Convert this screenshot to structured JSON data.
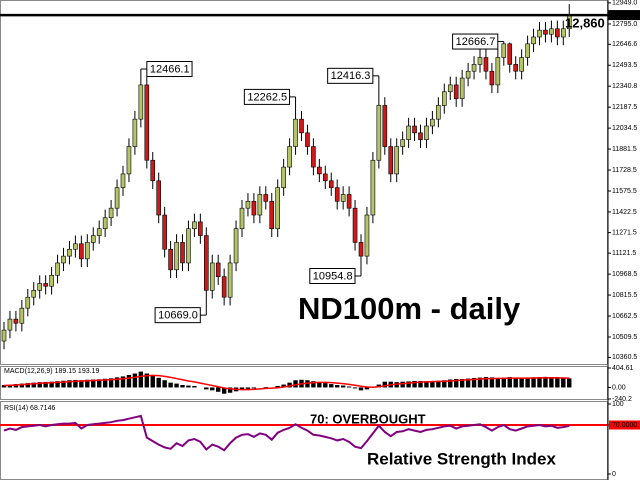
{
  "chart_data": [
    {
      "type": "candlestick",
      "title": "ND100m - daily",
      "open": [
        10480,
        10560,
        10640,
        10610,
        10720,
        10800,
        10850,
        10900,
        10880,
        10960,
        11050,
        11100,
        11150,
        11190,
        11080,
        11200,
        11250,
        11300,
        11380,
        11450,
        11600,
        11700,
        11900,
        12100,
        12350,
        11800,
        11650,
        11400,
        11150,
        11000,
        11200,
        11050,
        11300,
        11350,
        11250,
        10850,
        11050,
        10950,
        10800,
        11050,
        11300,
        11450,
        11500,
        11400,
        11550,
        11500,
        11300,
        11600,
        11750,
        11900,
        12100,
        12000,
        11900,
        11750,
        11700,
        11650,
        11600,
        11500,
        11550,
        11450,
        11200,
        11100,
        11400,
        11800,
        12200,
        11900,
        11700,
        11900,
        11950,
        12050,
        12000,
        11950,
        12050,
        12100,
        12200,
        12300,
        12350,
        12250,
        12400,
        12450,
        12500,
        12550,
        12450,
        12350,
        12550,
        12650,
        12500,
        12450,
        12550,
        12650,
        12700,
        12750,
        12720,
        12760,
        12700,
        12760
      ],
      "high": [
        10620,
        10700,
        10700,
        10780,
        10860,
        10910,
        10960,
        10960,
        11020,
        11110,
        11160,
        11210,
        11250,
        11250,
        11260,
        11310,
        11360,
        11440,
        11510,
        11660,
        11760,
        11960,
        12160,
        12466.1,
        12410,
        11860,
        11710,
        11460,
        11210,
        11260,
        11260,
        11360,
        11410,
        11410,
        11310,
        11110,
        11110,
        11010,
        11110,
        11360,
        11510,
        11560,
        11560,
        11610,
        11610,
        11560,
        11660,
        11810,
        11960,
        12262.5,
        12160,
        12060,
        11960,
        11810,
        11760,
        11710,
        11660,
        11610,
        11610,
        11510,
        11260,
        11460,
        11860,
        12416.3,
        12260,
        11960,
        11960,
        12010,
        12110,
        12110,
        12060,
        12110,
        12160,
        12260,
        12360,
        12410,
        12410,
        12460,
        12510,
        12560,
        12610,
        12610,
        12510,
        12610,
        12666.7,
        12660,
        12560,
        12610,
        12710,
        12760,
        12810,
        12810,
        12820,
        12820,
        12820,
        12940
      ],
      "low": [
        10420,
        10500,
        10550,
        10550,
        10660,
        10740,
        10790,
        10820,
        10820,
        10900,
        10990,
        11040,
        11090,
        11020,
        11020,
        11140,
        11190,
        11240,
        11320,
        11390,
        11540,
        11640,
        11840,
        12040,
        11740,
        11590,
        11340,
        11090,
        10940,
        10940,
        10990,
        10990,
        11240,
        11190,
        10669,
        10790,
        10890,
        10740,
        10740,
        10990,
        11240,
        11390,
        11340,
        11340,
        11440,
        11240,
        11240,
        11540,
        11690,
        11840,
        11940,
        11840,
        11690,
        11640,
        11590,
        11540,
        11440,
        11440,
        11390,
        11140,
        10954.8,
        11040,
        11340,
        11740,
        11840,
        11640,
        11640,
        11840,
        11890,
        11940,
        11890,
        11890,
        11990,
        12040,
        12140,
        12240,
        12190,
        12190,
        12340,
        12390,
        12440,
        12390,
        12290,
        12290,
        12490,
        12440,
        12390,
        12390,
        12490,
        12590,
        12640,
        12660,
        12660,
        12640,
        12640,
        12700
      ],
      "close": [
        10560,
        10640,
        10610,
        10720,
        10800,
        10850,
        10900,
        10880,
        10960,
        11050,
        11100,
        11150,
        11190,
        11080,
        11200,
        11250,
        11300,
        11380,
        11450,
        11600,
        11700,
        11900,
        12100,
        12350,
        11800,
        11650,
        11400,
        11150,
        11000,
        11200,
        11050,
        11300,
        11350,
        11250,
        10850,
        11050,
        10950,
        10800,
        11050,
        11300,
        11450,
        11500,
        11400,
        11550,
        11500,
        11300,
        11600,
        11750,
        11900,
        12100,
        12000,
        11900,
        11750,
        11700,
        11650,
        11600,
        11500,
        11550,
        11450,
        11200,
        11100,
        11400,
        11800,
        12200,
        11900,
        11700,
        11900,
        11950,
        12050,
        12000,
        11950,
        12050,
        12100,
        12200,
        12300,
        12350,
        12250,
        12400,
        12450,
        12500,
        12550,
        12450,
        12350,
        12550,
        12650,
        12500,
        12450,
        12550,
        12650,
        12700,
        12750,
        12720,
        12760,
        12700,
        12760,
        12860
      ],
      "high_labels": [
        null,
        null,
        null,
        null,
        null,
        null,
        null,
        null,
        null,
        null,
        null,
        null,
        null,
        null,
        null,
        null,
        null,
        null,
        null,
        null,
        null,
        null,
        null,
        "12466.1",
        null,
        null,
        null,
        null,
        null,
        null,
        null,
        null,
        null,
        null,
        null,
        null,
        null,
        null,
        null,
        null,
        null,
        null,
        null,
        null,
        null,
        null,
        null,
        null,
        null,
        "12262.5",
        null,
        null,
        null,
        null,
        null,
        null,
        null,
        null,
        null,
        null,
        null,
        null,
        null,
        "12416.3",
        null,
        null,
        null,
        null,
        null,
        null,
        null,
        null,
        null,
        null,
        null,
        null,
        null,
        null,
        null,
        null,
        null,
        null,
        null,
        null,
        "12666.7",
        null,
        null,
        null,
        null,
        null,
        null,
        null,
        null,
        null,
        null,
        null
      ],
      "low_labels": [
        null,
        null,
        null,
        null,
        null,
        null,
        null,
        null,
        null,
        null,
        null,
        null,
        null,
        null,
        null,
        null,
        null,
        null,
        null,
        null,
        null,
        null,
        null,
        null,
        null,
        null,
        null,
        null,
        null,
        null,
        null,
        null,
        null,
        null,
        "10669.0",
        null,
        null,
        null,
        null,
        null,
        null,
        null,
        null,
        null,
        null,
        null,
        null,
        null,
        null,
        null,
        null,
        null,
        null,
        null,
        null,
        null,
        null,
        null,
        null,
        null,
        "10954.8",
        null,
        null,
        null,
        null,
        null,
        null,
        null,
        null,
        null,
        null,
        null,
        null,
        null,
        null,
        null,
        null,
        null,
        null,
        null,
        null,
        null,
        null,
        null,
        null,
        null,
        null,
        null,
        null,
        null,
        null,
        null,
        null,
        null,
        null,
        null
      ],
      "up_color": "#b5c468",
      "down_color": "#cc1a1a",
      "ylim": [
        10305,
        12970
      ],
      "yticks": [
        {
          "value": 12949,
          "label": "12949.0"
        },
        {
          "value": 12795,
          "label": "12795.0"
        },
        12646.6,
        12493.5,
        12340.8,
        12187.5,
        12034.5,
        11881.5,
        11728.5,
        11575.5,
        11422.5,
        11271.5,
        11121.5,
        10968.5,
        10815.5,
        10662.5,
        10509.5,
        10360.5
      ],
      "last_price": {
        "value": 12860,
        "label": "12,860",
        "axis_label": "12860.0"
      }
    },
    {
      "type": "macd",
      "label": "MACD(12,26,9) 189.15 193.19",
      "histogram": {
        "color": "#000000",
        "values": [
          50,
          60,
          70,
          80,
          90,
          100,
          110,
          115,
          120,
          130,
          140,
          150,
          155,
          150,
          160,
          165,
          170,
          180,
          190,
          210,
          230,
          260,
          290,
          330,
          290,
          250,
          200,
          150,
          100,
          80,
          50,
          40,
          30,
          0,
          -40,
          -60,
          -90,
          -130,
          -110,
          -80,
          -50,
          -30,
          -20,
          0,
          10,
          0,
          30,
          60,
          100,
          150,
          160,
          150,
          130,
          110,
          90,
          70,
          50,
          40,
          20,
          -20,
          -60,
          -40,
          0,
          60,
          120,
          120,
          110,
          120,
          125,
          135,
          135,
          130,
          135,
          140,
          150,
          165,
          175,
          175,
          185,
          195,
          205,
          215,
          210,
          195,
          205,
          215,
          205,
          195,
          200,
          210,
          215,
          220,
          215,
          215,
          205,
          189.15
        ]
      },
      "signal": {
        "color": "#ff0000",
        "values": [
          40,
          45,
          52,
          60,
          68,
          76,
          84,
          92,
          98,
          105,
          112,
          120,
          127,
          133,
          138,
          144,
          150,
          156,
          163,
          171,
          181,
          194,
          211,
          230,
          245,
          250,
          245,
          230,
          210,
          185,
          160,
          135,
          115,
          90,
          65,
          40,
          15,
          -10,
          -30,
          -40,
          -45,
          -45,
          -40,
          -30,
          -20,
          -15,
          -5,
          10,
          30,
          55,
          75,
          90,
          100,
          105,
          105,
          100,
          90,
          80,
          65,
          45,
          25,
          10,
          5,
          15,
          35,
          55,
          70,
          80,
          90,
          100,
          110,
          115,
          120,
          125,
          130,
          135,
          145,
          150,
          160,
          165,
          175,
          180,
          185,
          190,
          190,
          195,
          195,
          195,
          195,
          197,
          200,
          200,
          200,
          198,
          196,
          193.19
        ]
      },
      "ylim": [
        -240.2,
        404.61
      ],
      "yticks": [
        {
          "value": 404.61,
          "label": "404.61"
        },
        {
          "value": 0,
          "label": "0.00"
        },
        -240.2
      ]
    },
    {
      "type": "line",
      "label": "RSI(14) 68.7146",
      "annotation": "70: OVERBOUGHT",
      "subtitle": "Relative Strength Index",
      "color": "#800080",
      "level_color": "#ff0000",
      "overbought_level": 70,
      "values": [
        62,
        65,
        63,
        67,
        68,
        69,
        70,
        68,
        70,
        71,
        72,
        72,
        73,
        65,
        70,
        71,
        72,
        73,
        74,
        76,
        77,
        79,
        81,
        83,
        52,
        47,
        42,
        38,
        36,
        44,
        40,
        48,
        50,
        46,
        35,
        42,
        39,
        34,
        44,
        52,
        56,
        57,
        53,
        58,
        56,
        49,
        59,
        63,
        66,
        71,
        66,
        62,
        56,
        55,
        53,
        51,
        48,
        50,
        46,
        39,
        37,
        47,
        58,
        69,
        60,
        54,
        60,
        61,
        64,
        62,
        60,
        63,
        64,
        66,
        68,
        69,
        65,
        68,
        69,
        70,
        71,
        67,
        62,
        67,
        70,
        64,
        62,
        65,
        68,
        69,
        70,
        68,
        69,
        66,
        67,
        68.7146
      ],
      "ylim": [
        0,
        100
      ],
      "yticks": [
        100,
        {
          "value": 70,
          "label": "70.0000"
        },
        0
      ]
    }
  ]
}
